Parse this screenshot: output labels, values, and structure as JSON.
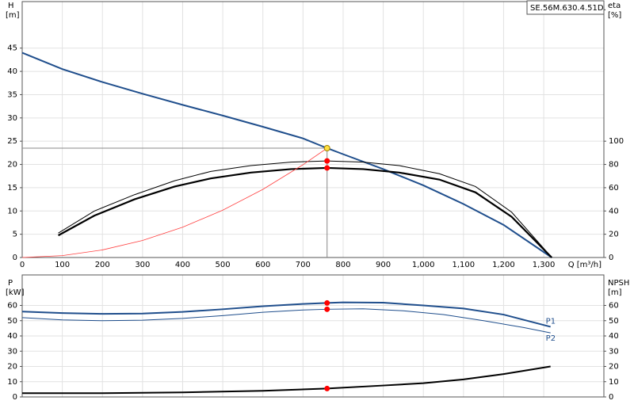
{
  "chart_data": [
    {
      "type": "line",
      "title": "SE.56M.630.4.51D.",
      "ylabel": "H",
      "yunit": "[m]",
      "y2label": "eta",
      "y2unit": "[%]",
      "xlabel": "Q [m³/h]",
      "xlim": [
        0,
        1450
      ],
      "ylim": [
        0,
        55
      ],
      "y2lim": [
        0,
        220
      ],
      "grid": true,
      "xticks": [
        0,
        100,
        200,
        300,
        400,
        500,
        600,
        700,
        800,
        900,
        {
          "value": 1000,
          "label": "1,000"
        },
        {
          "value": 1100,
          "label": "1,100"
        },
        {
          "value": 1200,
          "label": "1,200"
        },
        {
          "value": 1300,
          "label": "1,300"
        }
      ],
      "yticks": [
        0,
        5,
        10,
        15,
        20,
        25,
        30,
        35,
        40,
        45
      ],
      "y2ticks": [
        0,
        20,
        40,
        60,
        80,
        100
      ],
      "series": [
        {
          "color": "#1f4e8c",
          "width": 2,
          "x": [
            0,
            100,
            200,
            300,
            400,
            500,
            600,
            700,
            760,
            800,
            900,
            1000,
            1100,
            1200,
            1320
          ],
          "values": [
            44,
            40.5,
            37.7,
            35.2,
            32.8,
            30.5,
            28.1,
            25.6,
            23.5,
            22.2,
            19,
            15.5,
            11.5,
            7,
            0
          ]
        },
        {
          "color": "#000000",
          "width": 1,
          "axis": "y2",
          "x": [
            90,
            180,
            280,
            380,
            470,
            570,
            670,
            760,
            850,
            940,
            1040,
            1130,
            1220,
            1320
          ],
          "values": [
            21,
            40,
            54,
            66,
            74,
            79,
            82,
            83,
            82,
            79,
            72,
            61,
            39,
            0
          ]
        },
        {
          "color": "#000000",
          "width": 2.2,
          "axis": "y2",
          "x": [
            90,
            180,
            280,
            380,
            470,
            570,
            670,
            760,
            850,
            940,
            1040,
            1130,
            1220,
            1320
          ],
          "values": [
            19,
            36,
            50,
            61,
            68,
            73,
            76,
            77,
            76,
            73,
            67,
            56,
            35,
            0
          ]
        },
        {
          "color": "#ff4040",
          "width": 0.8,
          "x": [
            0,
            100,
            200,
            300,
            400,
            500,
            600,
            700,
            760
          ],
          "values": [
            0,
            0.41,
            1.63,
            3.66,
            6.51,
            10.17,
            14.65,
            19.94,
            23.5
          ]
        }
      ],
      "points": [
        {
          "color": "#ffe040",
          "x": 760,
          "value": 23.5,
          "crosshair": true
        },
        {
          "color": "#ff0000",
          "x": 760,
          "value": 83,
          "axis": "y2"
        },
        {
          "color": "#ff0000",
          "x": 760,
          "value": 77,
          "axis": "y2"
        }
      ]
    },
    {
      "type": "line",
      "ylabel": "P",
      "yunit": "[kW]",
      "y2label": "NPSH",
      "y2unit": "[m]",
      "xlim": [
        0,
        1450
      ],
      "ylim": [
        0,
        80
      ],
      "y2lim": [
        0,
        80
      ],
      "grid": true,
      "yticks": [
        0,
        10,
        20,
        30,
        40,
        50,
        60
      ],
      "y2ticks": [
        0,
        10,
        20,
        30,
        40,
        50,
        60
      ],
      "series": [
        {
          "name": "P1",
          "color": "#1f4e8c",
          "width": 2,
          "x": [
            0,
            100,
            200,
            300,
            400,
            500,
            600,
            700,
            760,
            800,
            900,
            1000,
            1100,
            1200,
            1317
          ],
          "values": [
            56,
            55,
            54.5,
            54.7,
            55.8,
            57.5,
            59.5,
            61,
            61.6,
            62,
            61.8,
            60,
            58,
            54,
            46
          ]
        },
        {
          "name": "P2",
          "color": "#1f4e8c",
          "width": 1,
          "x": [
            0,
            100,
            200,
            300,
            400,
            500,
            600,
            700,
            760,
            850,
            950,
            1050,
            1150,
            1250,
            1317
          ],
          "values": [
            52,
            50.5,
            50,
            50.3,
            51.5,
            53.3,
            55.5,
            57,
            57.5,
            57.8,
            56.5,
            54,
            50,
            45.5,
            42
          ]
        },
        {
          "color": "#000000",
          "width": 2,
          "axis": "y2",
          "x": [
            0,
            200,
            400,
            600,
            760,
            900,
            1000,
            1100,
            1200,
            1317
          ],
          "values": [
            2.5,
            2.5,
            3,
            4,
            5.5,
            7.5,
            9,
            11.5,
            15,
            20
          ]
        }
      ],
      "points": [
        {
          "color": "#ff0000",
          "x": 760,
          "value": 61.6
        },
        {
          "color": "#ff0000",
          "x": 760,
          "value": 57.5
        },
        {
          "color": "#ff0000",
          "x": 760,
          "value": 5.5,
          "axis": "y2"
        }
      ]
    }
  ]
}
